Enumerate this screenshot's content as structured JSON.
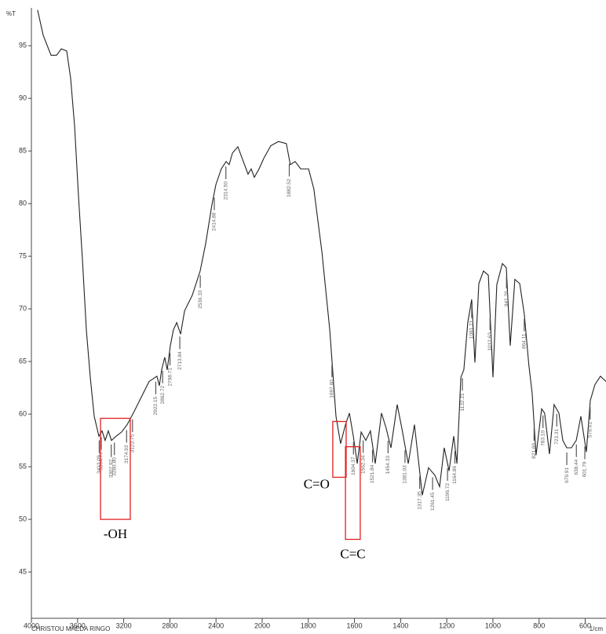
{
  "chart_data": {
    "type": "line",
    "y_label": "%T",
    "x_label": "1/cm",
    "footer": "CHRISTOU MAEDA RINGO",
    "xlim": [
      4000,
      510
    ],
    "x_scale_break": 2000,
    "x_lower_scale_factor": 2,
    "xticks": [
      4000,
      3600,
      3200,
      2800,
      2400,
      2000,
      1800,
      1600,
      1400,
      1200,
      1000,
      800,
      600
    ],
    "ylim": [
      40.6,
      98.6
    ],
    "yticks": [
      45,
      50,
      55,
      60,
      65,
      70,
      75,
      80,
      85,
      90,
      95
    ],
    "series": [
      {
        "color": "#222222",
        "x": [
          3946,
          3898,
          3830,
          3782,
          3741,
          3694,
          3660,
          3626,
          3592,
          3558,
          3524,
          3490,
          3456,
          3415,
          3388,
          3361,
          3333,
          3306,
          3265,
          3218,
          3170,
          3116,
          3048,
          2980,
          2912,
          2891,
          2871,
          2844,
          2823,
          2796,
          2769,
          2741,
          2707,
          2673,
          2605,
          2537,
          2490,
          2435,
          2401,
          2354,
          2313,
          2286,
          2258,
          2211,
          2163,
          2122,
          2095,
          2068,
          2027,
          1993,
          1963,
          1929,
          1895,
          1878,
          1857,
          1833,
          1799,
          1776,
          1741,
          1707,
          1680,
          1660,
          1639,
          1622,
          1605,
          1588,
          1571,
          1551,
          1531,
          1510,
          1483,
          1463,
          1442,
          1415,
          1395,
          1367,
          1340,
          1306,
          1279,
          1252,
          1231,
          1211,
          1190,
          1170,
          1156,
          1139,
          1126,
          1109,
          1092,
          1078,
          1061,
          1041,
          1020,
          1000,
          983,
          959,
          942,
          925,
          905,
          884,
          864,
          844,
          830,
          813,
          789,
          776,
          755,
          735,
          714,
          697,
          680,
          660,
          639,
          619,
          595,
          578,
          558,
          534,
          510
        ],
        "values": [
          98.4,
          96,
          94.1,
          94.1,
          94.7,
          94.5,
          91.9,
          87.4,
          80.7,
          74.7,
          68,
          63.5,
          59.8,
          57.9,
          58.4,
          57.5,
          58.4,
          57.5,
          57.9,
          58.3,
          59,
          60.1,
          61.6,
          63.1,
          63.6,
          62.7,
          64.2,
          65.4,
          64.2,
          66.5,
          68,
          68.7,
          67.6,
          69.8,
          71.3,
          73.6,
          76.2,
          79.9,
          81.8,
          83.3,
          84,
          83.7,
          84.8,
          85.4,
          84,
          82.8,
          83.3,
          82.5,
          83.3,
          84.3,
          85.5,
          85.9,
          85.7,
          83.7,
          84,
          83.3,
          83.3,
          81.4,
          75.4,
          68,
          59.8,
          57.2,
          59,
          60.1,
          57.9,
          55.3,
          58.3,
          57.5,
          58.4,
          55.3,
          60.1,
          58.7,
          56.8,
          60.9,
          58.7,
          55.3,
          59,
          52.3,
          54.9,
          54.2,
          53.1,
          56.8,
          54.6,
          57.9,
          55.3,
          63.5,
          64.2,
          68.7,
          70.9,
          64.9,
          72.4,
          73.6,
          73.2,
          63.5,
          72.3,
          74.3,
          73.9,
          66.5,
          72.8,
          72.4,
          69.5,
          64.6,
          62,
          56.1,
          60.5,
          60.1,
          56.2,
          60.9,
          60.1,
          57.5,
          56.8,
          56.8,
          57.5,
          59.8,
          56.4,
          61.3,
          62.8,
          63.6,
          63.1
        ]
      }
    ],
    "peaks": [
      {
        "value": 3412.09,
        "label": "3412.09"
      },
      {
        "value": 3394.77,
        "label": "3394.77"
      },
      {
        "value": 3307.92,
        "label": "3307.92"
      },
      {
        "value": 3280.8,
        "label": "3280.80"
      },
      {
        "value": 3174.93,
        "label": "3174.93"
      },
      {
        "value": 3123.75,
        "label": "3123.75"
      },
      {
        "value": 2922.15,
        "label": "2922.15"
      },
      {
        "value": 2862.72,
        "label": "2862.72"
      },
      {
        "value": 2798.71,
        "label": "2798.71"
      },
      {
        "value": 2713.84,
        "label": "2713.84"
      },
      {
        "value": 2536.33,
        "label": "2536.33"
      },
      {
        "value": 2414.88,
        "label": "2414.88"
      },
      {
        "value": 2314.5,
        "label": "2314.50"
      },
      {
        "value": 1882.52,
        "label": "1882.52"
      },
      {
        "value": 1697.6,
        "label": "1697.60"
      },
      {
        "value": 1604.37,
        "label": "1604.37"
      },
      {
        "value": 1562.34,
        "label": "1562.34"
      },
      {
        "value": 1521.84,
        "label": "1521.84"
      },
      {
        "value": 1454.33,
        "label": "1454.33"
      },
      {
        "value": 1381.03,
        "label": "1381.03"
      },
      {
        "value": 1317.35,
        "label": "1317.35"
      },
      {
        "value": 1261.45,
        "label": "1261.45"
      },
      {
        "value": 1196.72,
        "label": "1196.72"
      },
      {
        "value": 1164.86,
        "label": "1164.86"
      },
      {
        "value": 1132.21,
        "label": "1132.21"
      },
      {
        "value": 1091.71,
        "label": "1091.71"
      },
      {
        "value": 1012.63,
        "label": "1012.63"
      },
      {
        "value": 941.26,
        "label": "941.26"
      },
      {
        "value": 864.11,
        "label": "864.11"
      },
      {
        "value": 821.69,
        "label": "821.69"
      },
      {
        "value": 783.1,
        "label": "783.10"
      },
      {
        "value": 723.31,
        "label": "723.31"
      },
      {
        "value": 679.91,
        "label": "679.91"
      },
      {
        "value": 638.44,
        "label": "638.44"
      },
      {
        "value": 601.79,
        "label": "601.79"
      },
      {
        "value": 578.61,
        "label": "578.61"
      }
    ],
    "regions": [
      {
        "label": "-OH",
        "x": [
          3401,
          3143
        ],
        "y": [
          50,
          59.6
        ],
        "color": "#e02020"
      },
      {
        "label": "C=O",
        "x": [
          1694,
          1636
        ],
        "y": [
          54,
          59.3
        ],
        "color": "#e02020"
      },
      {
        "label": "C=C",
        "x": [
          1639,
          1575
        ],
        "y": [
          48.1,
          56.9
        ],
        "color": "#e02020"
      }
    ]
  }
}
